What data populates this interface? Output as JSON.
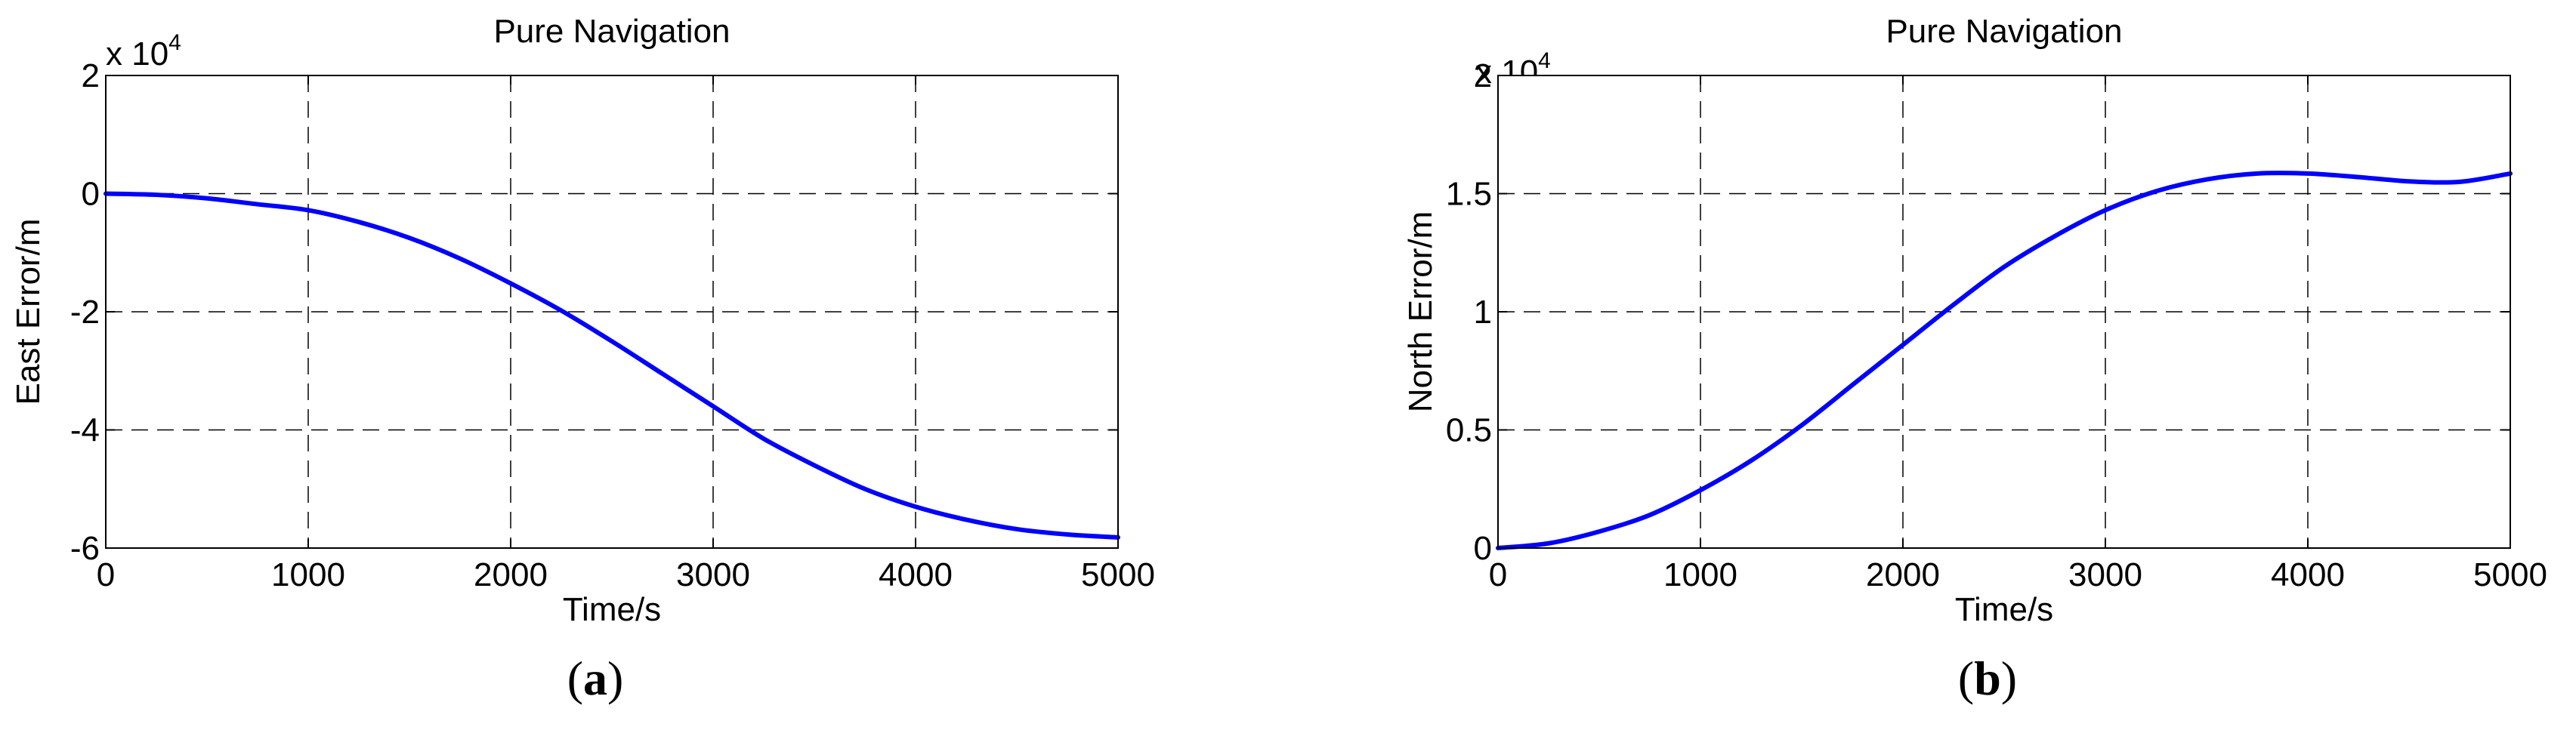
{
  "chart_data": [
    {
      "type": "line",
      "panel_label": "(a)",
      "panel_letter": "a",
      "title": "Pure Navigation",
      "xlabel": "Time/s",
      "ylabel": "East Error/m",
      "y_multiplier_label": "x 10",
      "y_multiplier_exponent": "4",
      "xlim": [
        0,
        5000
      ],
      "ylim": [
        -6,
        2
      ],
      "y_unit_scale": 10000,
      "x_ticks": [
        0,
        1000,
        2000,
        3000,
        4000,
        5000
      ],
      "y_ticks": [
        -6,
        -4,
        -2,
        0,
        2
      ],
      "x_tick_labels": [
        "0",
        "1000",
        "2000",
        "3000",
        "4000",
        "5000"
      ],
      "y_tick_labels": [
        "-6",
        "-4",
        "-2",
        "0",
        "2"
      ],
      "grid": true,
      "series_color": "#0000ff",
      "series": [
        {
          "x": [
            0,
            250,
            500,
            750,
            1000,
            1250,
            1500,
            1750,
            2000,
            2250,
            2500,
            2750,
            3000,
            3250,
            3500,
            3750,
            4000,
            4250,
            4500,
            4750,
            5000
          ],
          "y": [
            0,
            -0.02,
            -0.08,
            -0.18,
            -0.28,
            -0.48,
            -0.75,
            -1.1,
            -1.52,
            -1.98,
            -2.5,
            -3.05,
            -3.6,
            -4.15,
            -4.6,
            -5.0,
            -5.3,
            -5.52,
            -5.68,
            -5.77,
            -5.82
          ]
        }
      ]
    },
    {
      "type": "line",
      "panel_label": "(b)",
      "panel_letter": "b",
      "title": "Pure Navigation",
      "xlabel": "Time/s",
      "ylabel": "North Error/m",
      "y_multiplier_label": "x 10",
      "y_multiplier_exponent": "4",
      "xlim": [
        0,
        5000
      ],
      "ylim": [
        0,
        2
      ],
      "y_unit_scale": 10000,
      "x_ticks": [
        0,
        1000,
        2000,
        3000,
        4000,
        5000
      ],
      "y_ticks": [
        0,
        0.5,
        1,
        1.5,
        2
      ],
      "x_tick_labels": [
        "0",
        "1000",
        "2000",
        "3000",
        "4000",
        "5000"
      ],
      "y_tick_labels": [
        "0",
        "0.5",
        "1",
        "1.5",
        "2"
      ],
      "grid": true,
      "series_color": "#0000ff",
      "series": [
        {
          "x": [
            0,
            250,
            500,
            750,
            1000,
            1250,
            1500,
            1750,
            2000,
            2250,
            2500,
            2750,
            3000,
            3250,
            3500,
            3750,
            4000,
            4250,
            4500,
            4750,
            5000
          ],
          "y": [
            0,
            0.02,
            0.07,
            0.14,
            0.245,
            0.37,
            0.52,
            0.69,
            0.86,
            1.03,
            1.19,
            1.32,
            1.43,
            1.51,
            1.56,
            1.585,
            1.585,
            1.57,
            1.552,
            1.55,
            1.585
          ]
        }
      ]
    }
  ]
}
